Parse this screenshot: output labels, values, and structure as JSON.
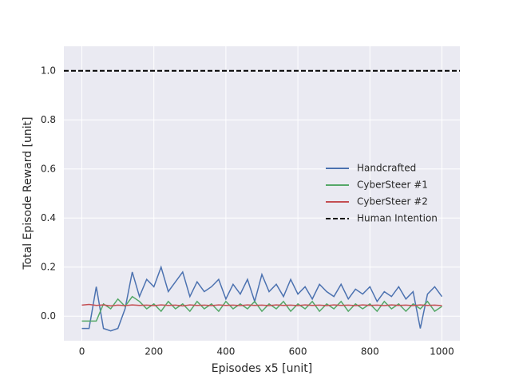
{
  "chart_data": {
    "type": "line",
    "xlabel": "Episodes x5 [unit]",
    "ylabel": "Total Episode Reward [unit]",
    "x": [
      0,
      20,
      40,
      60,
      80,
      100,
      120,
      140,
      160,
      180,
      200,
      220,
      240,
      260,
      280,
      300,
      320,
      340,
      360,
      380,
      400,
      420,
      440,
      460,
      480,
      500,
      520,
      540,
      560,
      580,
      600,
      620,
      640,
      660,
      680,
      700,
      720,
      740,
      760,
      780,
      800,
      820,
      840,
      860,
      880,
      900,
      920,
      940,
      960,
      980,
      1000
    ],
    "series": [
      {
        "name": "Handcrafted",
        "color": "#4c72b0",
        "values": [
          -0.05,
          -0.05,
          0.12,
          -0.05,
          -0.06,
          -0.05,
          0.03,
          0.18,
          0.08,
          0.15,
          0.12,
          0.2,
          0.1,
          0.14,
          0.18,
          0.08,
          0.14,
          0.1,
          0.12,
          0.15,
          0.07,
          0.13,
          0.09,
          0.15,
          0.06,
          0.17,
          0.1,
          0.13,
          0.08,
          0.15,
          0.09,
          0.12,
          0.07,
          0.13,
          0.1,
          0.08,
          0.13,
          0.07,
          0.11,
          0.09,
          0.12,
          0.06,
          0.1,
          0.08,
          0.12,
          0.07,
          0.1,
          -0.05,
          0.09,
          0.12,
          0.08
        ]
      },
      {
        "name": "CyberSteer #1",
        "color": "#55a868",
        "values": [
          -0.02,
          -0.02,
          -0.02,
          0.05,
          0.03,
          0.07,
          0.04,
          0.08,
          0.06,
          0.03,
          0.05,
          0.02,
          0.06,
          0.03,
          0.05,
          0.02,
          0.06,
          0.03,
          0.05,
          0.02,
          0.06,
          0.03,
          0.05,
          0.03,
          0.06,
          0.02,
          0.05,
          0.03,
          0.06,
          0.02,
          0.05,
          0.03,
          0.06,
          0.02,
          0.05,
          0.03,
          0.06,
          0.02,
          0.05,
          0.03,
          0.05,
          0.02,
          0.06,
          0.03,
          0.05,
          0.02,
          0.05,
          0.03,
          0.06,
          0.02,
          0.04
        ]
      },
      {
        "name": "CyberSteer #2",
        "color": "#c44e52",
        "values": [
          0.045,
          0.048,
          0.044,
          0.046,
          0.042,
          0.045,
          0.043,
          0.046,
          0.044,
          0.045,
          0.043,
          0.046,
          0.044,
          0.045,
          0.042,
          0.046,
          0.044,
          0.045,
          0.043,
          0.046,
          0.044,
          0.045,
          0.043,
          0.046,
          0.044,
          0.045,
          0.043,
          0.046,
          0.044,
          0.045,
          0.043,
          0.046,
          0.044,
          0.045,
          0.043,
          0.046,
          0.044,
          0.045,
          0.043,
          0.046,
          0.044,
          0.045,
          0.043,
          0.046,
          0.044,
          0.045,
          0.043,
          0.046,
          0.044,
          0.045,
          0.043
        ]
      }
    ],
    "hlines": [
      {
        "name": "Human Intention",
        "color": "#000000",
        "y": 1.0,
        "dashed": true
      }
    ],
    "xlim": [
      -50,
      1050
    ],
    "ylim": [
      -0.1,
      1.1
    ],
    "xticks": [
      0,
      200,
      400,
      600,
      800,
      1000
    ],
    "yticks": [
      {
        "value": 0,
        "label": "0.0"
      },
      0.2,
      0.4,
      0.6,
      0.8,
      {
        "value": 1,
        "label": "1.0"
      }
    ],
    "grid": true,
    "background": "#eaeaf2",
    "legend": "center right"
  }
}
